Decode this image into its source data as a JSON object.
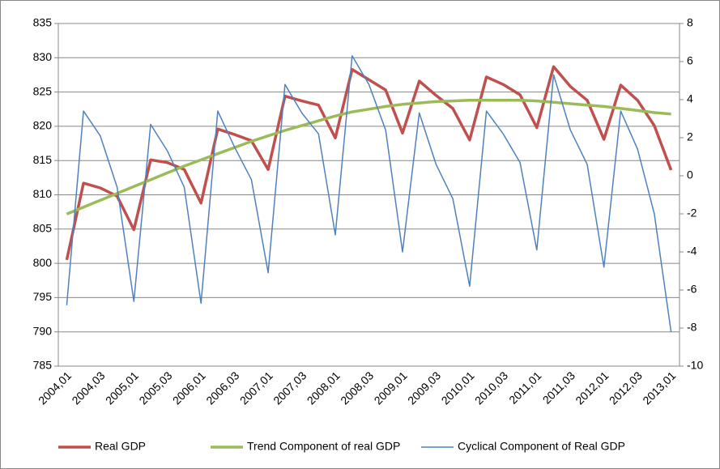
{
  "chart_data": {
    "type": "line",
    "categories": [
      "2004,01",
      null,
      "2004,03",
      null,
      "2005,01",
      null,
      "2005,03",
      null,
      "2006,01",
      null,
      "2006,03",
      null,
      "2007,01",
      null,
      "2007,03",
      null,
      "2008,01",
      null,
      "2008,03",
      null,
      "2009,01",
      null,
      "2009,03",
      null,
      "2010,01",
      null,
      "2010,03",
      null,
      "2011,01",
      null,
      "2011,03",
      null,
      "2012,01",
      null,
      "2012,03",
      null,
      "2013,01"
    ],
    "series": [
      {
        "name": "Real GDP",
        "color": "#c0504d",
        "values": [
          800.5,
          811.7,
          811.0,
          809.8,
          804.9,
          815.1,
          814.7,
          813.7,
          808.8,
          819.6,
          818.8,
          817.9,
          813.7,
          824.4,
          823.7,
          823.1,
          818.3,
          828.3,
          826.8,
          825.3,
          819.0,
          826.6,
          824.5,
          822.6,
          818.0,
          827.2,
          826.1,
          824.6,
          819.8,
          828.7,
          825.8,
          823.8,
          818.1,
          826.0,
          823.8,
          820.1,
          813.6
        ]
      },
      {
        "name": "Trend Component of real GDP",
        "color": "#9bbb59",
        "values": [
          807.2,
          808.2,
          809.2,
          810.2,
          811.2,
          812.2,
          813.2,
          814.2,
          815.1,
          816.0,
          816.9,
          817.8,
          818.6,
          819.4,
          820.1,
          820.8,
          821.5,
          822.1,
          822.5,
          822.9,
          823.2,
          823.4,
          823.6,
          823.7,
          823.8,
          823.8,
          823.8,
          823.8,
          823.7,
          823.5,
          823.3,
          823.1,
          822.9,
          822.6,
          822.3,
          822.0,
          821.8
        ]
      },
      {
        "name": "Cyclical Component of Real GDP",
        "color": "#4f81bd",
        "axis": "y2",
        "values": [
          -6.8,
          3.4,
          2.1,
          -0.6,
          -6.6,
          2.7,
          1.3,
          -0.6,
          -6.7,
          3.4,
          1.5,
          -0.2,
          -5.1,
          4.8,
          3.3,
          2.2,
          -3.1,
          6.3,
          4.8,
          2.4,
          -4.0,
          3.3,
          0.6,
          -1.2,
          -5.8,
          3.4,
          2.2,
          0.7,
          -3.9,
          5.3,
          2.4,
          0.6,
          -4.8,
          3.4,
          1.4,
          -2.0,
          -8.2
        ]
      }
    ],
    "ylim": [
      785,
      835
    ],
    "yticks": [
      785,
      790,
      795,
      800,
      805,
      810,
      815,
      820,
      825,
      830,
      835
    ],
    "y2lim": [
      -10,
      8
    ],
    "y2ticks": [
      -10,
      -8,
      -6,
      -4,
      -2,
      0,
      2,
      4,
      6,
      8
    ],
    "grid": true,
    "legend": "bottom"
  }
}
